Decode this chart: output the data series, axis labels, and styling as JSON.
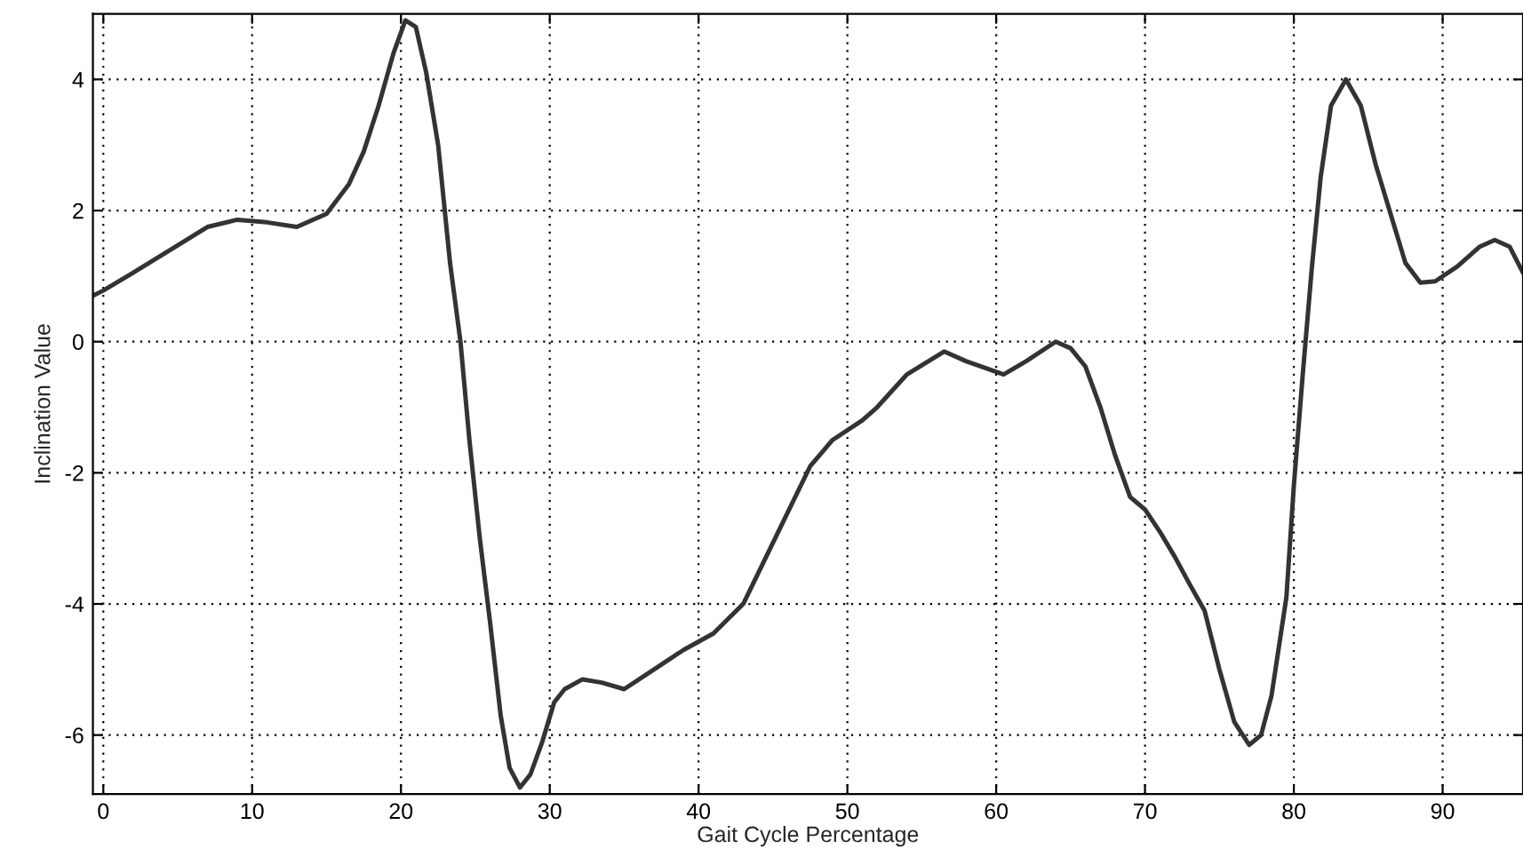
{
  "chart_data": {
    "type": "line",
    "xlabel": "Gait Cycle Percentage",
    "ylabel": "Inclination Value",
    "xlim": [
      -0.7,
      95.4
    ],
    "ylim": [
      -6.9,
      5
    ],
    "xticks": [
      0,
      10,
      20,
      30,
      40,
      50,
      60,
      70,
      80,
      90
    ],
    "yticks": [
      -6,
      -4,
      -2,
      0,
      2,
      4
    ],
    "grid": true,
    "line_style": "solid",
    "series": [
      {
        "color": "#333333",
        "x": [
          -0.7,
          0,
          2,
          4.5,
          7,
          9,
          11,
          13,
          15,
          16.5,
          17.5,
          18.5,
          19.5,
          20.3,
          21,
          21.7,
          22.5,
          23.3,
          24,
          24.6,
          25.3,
          26,
          26.7,
          27.3,
          28,
          28.7,
          29.5,
          30.3,
          31,
          32.2,
          33.5,
          35,
          37,
          39,
          41,
          43,
          44.5,
          46,
          47.5,
          49,
          51,
          52,
          54,
          56.5,
          58,
          60.5,
          62,
          64,
          65,
          66,
          67,
          68,
          69,
          70,
          71,
          72,
          73,
          74,
          75,
          76,
          77,
          77.8,
          78.5,
          79.5,
          80,
          80.6,
          81.2,
          81.8,
          82.5,
          83.5,
          84.5,
          85.5,
          86.5,
          87.5,
          88.5,
          89.5,
          91,
          92.5,
          93.5,
          94.5,
          95.4
        ],
        "values": [
          0.7,
          0.78,
          1.05,
          1.4,
          1.75,
          1.86,
          1.82,
          1.75,
          1.95,
          2.4,
          2.9,
          3.6,
          4.4,
          4.9,
          4.8,
          4.1,
          3.0,
          1.2,
          0,
          -1.5,
          -3.0,
          -4.3,
          -5.7,
          -6.5,
          -6.8,
          -6.6,
          -6.1,
          -5.5,
          -5.3,
          -5.15,
          -5.2,
          -5.3,
          -5.0,
          -4.7,
          -4.45,
          -4.0,
          -3.3,
          -2.6,
          -1.9,
          -1.5,
          -1.2,
          -1.0,
          -0.5,
          -0.15,
          -0.3,
          -0.5,
          -0.3,
          0,
          -0.1,
          -0.38,
          -1.0,
          -1.74,
          -2.37,
          -2.56,
          -2.9,
          -3.28,
          -3.7,
          -4.1,
          -5.0,
          -5.8,
          -6.15,
          -6.0,
          -5.4,
          -3.9,
          -2.2,
          -0.5,
          1.1,
          2.5,
          3.6,
          4.0,
          3.6,
          2.7,
          1.95,
          1.2,
          0.9,
          0.92,
          1.15,
          1.45,
          1.55,
          1.45,
          1.05
        ]
      }
    ]
  }
}
